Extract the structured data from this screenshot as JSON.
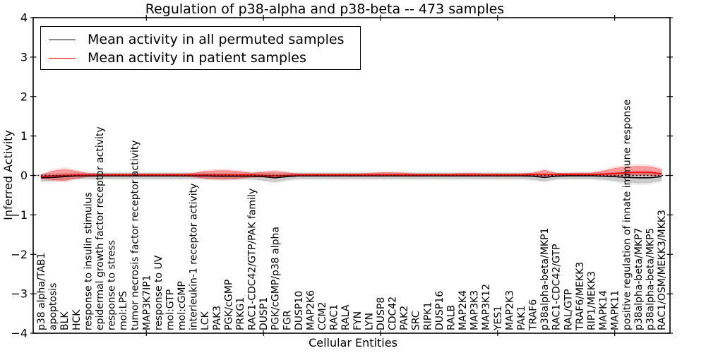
{
  "chart_data": {
    "type": "line",
    "title": "Regulation of p38-alpha and p38-beta -- 473 samples",
    "xlabel": "Cellular Entities",
    "ylabel": "Inferred Activity",
    "ylim": [
      -4,
      4
    ],
    "yticks": [
      -4,
      -3,
      -2,
      -1,
      0,
      1,
      2,
      3,
      4
    ],
    "xtick_indices": [
      9,
      19,
      29,
      39,
      49
    ],
    "grid": false,
    "legend_position": "upper left",
    "zero_reference_line": 0,
    "categories": [
      "p38 alpha/TAB1",
      "apoptosis",
      "BLK",
      "HCK",
      "response to insulin stimulus",
      "epidermal growth factor receptor activity",
      "response to stress",
      "mol:LPS",
      "tumor necrosis factor receptor activity",
      "MAP3K7IP1",
      "response to UV",
      "mol:GTP",
      "mol:cGMP",
      "interleukin-1 receptor activity",
      "LCK",
      "PAK3",
      "PGK/cGMP",
      "PRKG1",
      "RAC1-CDC42/GTP/PAK family",
      "DUSP1",
      "PGK/cGMP/p38 alpha",
      "FGR",
      "DUSP10",
      "MAP2K6",
      "CCM2",
      "RAC1",
      "RALA",
      "FYN",
      "LYN",
      "DUSP8",
      "CDC42",
      "PAK2",
      "SRC",
      "RIPK1",
      "DUSP16",
      "RALB",
      "MAP2K4",
      "MAP3K3",
      "MAP3K12",
      "YES1",
      "MAP2K3",
      "PAK1",
      "TRAF6",
      "p38alpha-beta/MKP1",
      "RAC1-CDC42/GTP",
      "RAL/GTP",
      "TRAF6/MEKK3",
      "RIP1/MEKK3",
      "MAPK14",
      "MAPK11",
      "positive regulation of innate immune response",
      "p38alpha-beta/MKP7",
      "p38alpha-beta/MKP5",
      "RAC1/OSM/MEKK3/MKK3"
    ],
    "series": [
      {
        "name": "Mean activity in all permuted samples",
        "color": "#000000",
        "values": [
          -0.06,
          -0.05,
          -0.03,
          -0.01,
          -0.01,
          -0.01,
          -0.01,
          -0.01,
          -0.01,
          -0.01,
          -0.01,
          -0.01,
          -0.01,
          -0.01,
          -0.01,
          -0.02,
          -0.02,
          -0.02,
          -0.02,
          -0.03,
          -0.06,
          -0.03,
          -0.01,
          -0.01,
          -0.01,
          -0.01,
          -0.01,
          -0.01,
          -0.01,
          -0.01,
          -0.01,
          -0.01,
          -0.01,
          -0.01,
          -0.01,
          -0.01,
          -0.01,
          -0.01,
          -0.01,
          -0.01,
          -0.01,
          -0.01,
          -0.02,
          -0.05,
          -0.02,
          -0.01,
          -0.01,
          -0.01,
          -0.02,
          -0.03,
          -0.05,
          -0.06,
          -0.06,
          -0.03
        ],
        "band_half_width": [
          0.08,
          0.08,
          0.08,
          0.07,
          0.07,
          0.07,
          0.07,
          0.07,
          0.07,
          0.07,
          0.07,
          0.07,
          0.07,
          0.07,
          0.07,
          0.07,
          0.07,
          0.07,
          0.07,
          0.09,
          0.1,
          0.08,
          0.07,
          0.07,
          0.07,
          0.07,
          0.07,
          0.07,
          0.07,
          0.07,
          0.07,
          0.07,
          0.07,
          0.07,
          0.07,
          0.07,
          0.07,
          0.07,
          0.07,
          0.07,
          0.07,
          0.07,
          0.08,
          0.09,
          0.07,
          0.07,
          0.07,
          0.07,
          0.08,
          0.1,
          0.12,
          0.13,
          0.12,
          0.1
        ]
      },
      {
        "name": "Mean activity in patient samples",
        "color": "#ff0000",
        "values": [
          -0.03,
          -0.01,
          0.0,
          0.01,
          0.01,
          0.01,
          0.01,
          0.01,
          0.01,
          0.01,
          0.01,
          0.01,
          0.01,
          0.01,
          0.01,
          0.01,
          0.01,
          0.01,
          0.01,
          0.0,
          -0.01,
          0.0,
          0.01,
          0.01,
          0.01,
          0.01,
          0.01,
          0.01,
          0.01,
          0.01,
          0.01,
          0.01,
          0.01,
          0.01,
          0.01,
          0.01,
          0.01,
          0.01,
          0.01,
          0.01,
          0.01,
          0.01,
          0.02,
          0.02,
          0.02,
          0.02,
          0.02,
          0.02,
          0.03,
          0.05,
          0.07,
          0.08,
          0.08,
          0.04
        ],
        "band_up": [
          0.04,
          0.12,
          0.15,
          0.1,
          0.04,
          0.03,
          0.03,
          0.03,
          0.03,
          0.03,
          0.03,
          0.03,
          0.03,
          0.04,
          0.09,
          0.11,
          0.11,
          0.09,
          0.05,
          0.08,
          0.11,
          0.07,
          0.03,
          0.03,
          0.03,
          0.03,
          0.03,
          0.03,
          0.04,
          0.06,
          0.06,
          0.05,
          0.03,
          0.03,
          0.03,
          0.03,
          0.04,
          0.04,
          0.03,
          0.03,
          0.03,
          0.03,
          0.04,
          0.11,
          0.04,
          0.03,
          0.04,
          0.04,
          0.08,
          0.13,
          0.14,
          0.15,
          0.14,
          0.11
        ],
        "band_down": [
          0.04,
          0.1,
          0.13,
          0.08,
          0.04,
          0.03,
          0.03,
          0.03,
          0.03,
          0.03,
          0.03,
          0.03,
          0.03,
          0.04,
          0.08,
          0.1,
          0.1,
          0.08,
          0.05,
          0.04,
          0.05,
          0.03,
          0.03,
          0.03,
          0.03,
          0.03,
          0.03,
          0.03,
          0.03,
          0.03,
          0.03,
          0.03,
          0.03,
          0.03,
          0.03,
          0.03,
          0.03,
          0.03,
          0.03,
          0.03,
          0.03,
          0.03,
          0.03,
          0.06,
          0.03,
          0.03,
          0.03,
          0.03,
          0.04,
          0.05,
          0.06,
          0.07,
          0.07,
          0.05
        ]
      }
    ],
    "colors": {
      "permuted_line": "#000000",
      "patient_line": "#ff0000",
      "permuted_band": "#d9d9d9",
      "patient_band": "#f4a6a6",
      "axes": "#000000"
    }
  }
}
